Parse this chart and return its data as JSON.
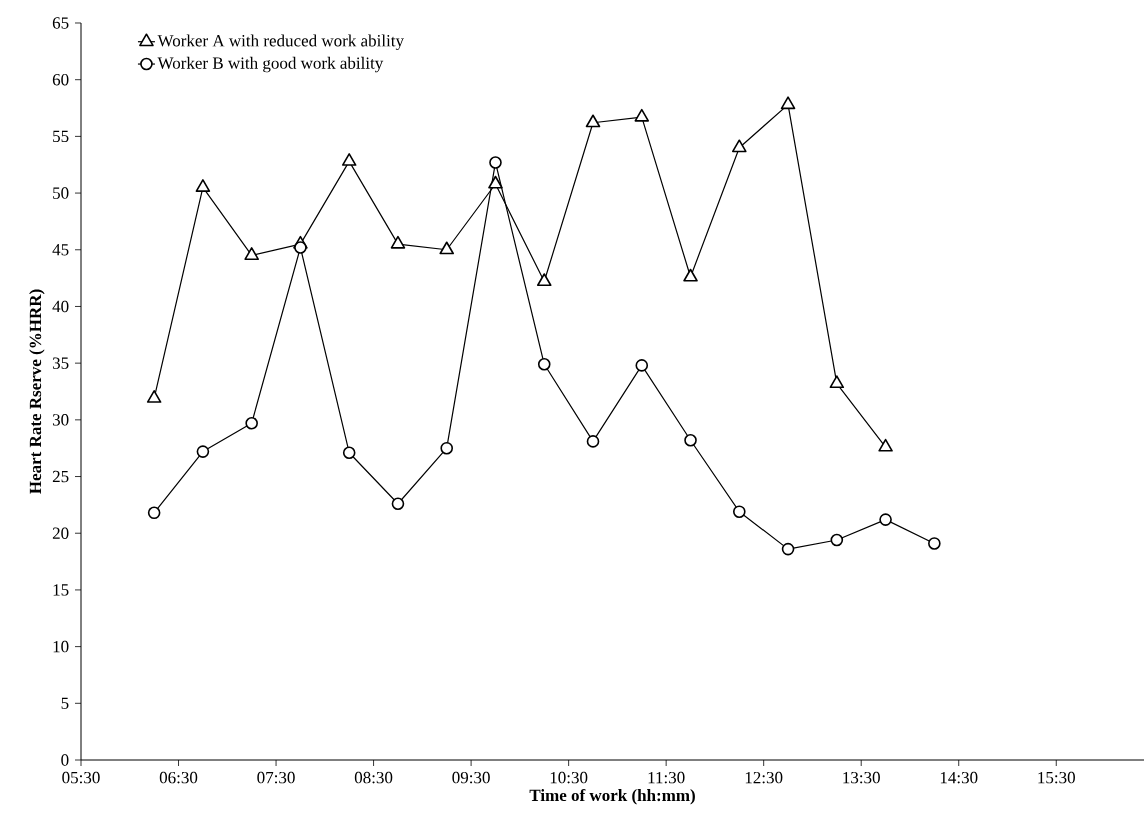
{
  "chart_data": {
    "type": "line",
    "xlabel": "Time of work  (hh:mm)",
    "ylabel": "Heart Rate Rserve (%HRR)",
    "x": [
      6.25,
      6.75,
      7.25,
      7.75,
      8.25,
      8.75,
      9.25,
      9.75,
      10.25,
      10.75,
      11.25,
      11.75,
      12.25,
      12.75,
      13.25,
      13.75,
      14.25
    ],
    "series": [
      {
        "name": "Worker A with reduced work ability",
        "color": "#000000",
        "marker": "triangle",
        "values": [
          31.9,
          50.5,
          44.5,
          45.5,
          52.8,
          45.5,
          45.0,
          50.8,
          42.2,
          56.2,
          56.7,
          42.6,
          54.0,
          57.8,
          33.2,
          27.6,
          null
        ]
      },
      {
        "name": "Worker B with good work ability",
        "color": "#000000",
        "marker": "circle",
        "values": [
          21.8,
          27.2,
          29.7,
          45.2,
          27.1,
          22.6,
          27.5,
          52.7,
          34.9,
          28.1,
          34.8,
          28.2,
          21.9,
          18.6,
          19.4,
          21.2,
          19.1
        ]
      }
    ],
    "xlim": [
      5.5,
      16.4
    ],
    "xticks": [
      {
        "value": 5.5,
        "label": "05:30"
      },
      {
        "value": 6.5,
        "label": "06:30"
      },
      {
        "value": 7.5,
        "label": "07:30"
      },
      {
        "value": 8.5,
        "label": "08:30"
      },
      {
        "value": 9.5,
        "label": "09:30"
      },
      {
        "value": 10.5,
        "label": "10:30"
      },
      {
        "value": 11.5,
        "label": "11:30"
      },
      {
        "value": 12.5,
        "label": "12:30"
      },
      {
        "value": 13.5,
        "label": "13:30"
      },
      {
        "value": 14.5,
        "label": "14:30"
      },
      {
        "value": 15.5,
        "label": "15:30"
      }
    ],
    "ylim": [
      0,
      65
    ],
    "yticks": [
      0,
      5,
      10,
      15,
      20,
      25,
      30,
      35,
      40,
      45,
      50,
      55,
      60,
      65
    ],
    "legend": "top left",
    "line_style": "solid"
  }
}
